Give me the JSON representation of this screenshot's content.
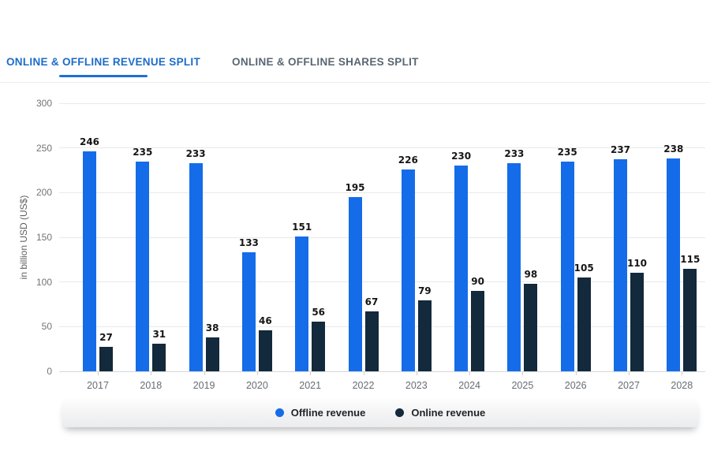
{
  "tabs": {
    "items": [
      {
        "id": "revenue-split",
        "label": "ONLINE & OFFLINE REVENUE SPLIT",
        "active": true
      },
      {
        "id": "shares-split",
        "label": "ONLINE & OFFLINE SHARES SPLIT",
        "active": false
      }
    ]
  },
  "colors": {
    "tab_active": "#1d6bc9",
    "tab_underline": "#1d6fd6",
    "offline_bar": "#156ce8",
    "online_bar": "#13293c"
  },
  "chart_data": {
    "type": "bar",
    "categories": [
      "2017",
      "2018",
      "2019",
      "2020",
      "2021",
      "2022",
      "2023",
      "2024",
      "2025",
      "2026",
      "2027",
      "2028"
    ],
    "series": [
      {
        "name": "Offline revenue",
        "color": "#156ce8",
        "values": [
          246,
          235,
          233,
          133,
          151,
          195,
          226,
          230,
          233,
          235,
          237,
          238
        ]
      },
      {
        "name": "Online revenue",
        "color": "#13293c",
        "values": [
          27,
          31,
          38,
          46,
          56,
          67,
          79,
          90,
          98,
          105,
          110,
          115
        ]
      }
    ],
    "xlabel": "",
    "ylabel": "in billion USD (US$)",
    "ylim": [
      0,
      300
    ],
    "yticks": [
      0,
      50,
      100,
      150,
      200,
      250,
      300
    ],
    "grid": true,
    "legend_position": "bottom",
    "data_labels": true
  }
}
